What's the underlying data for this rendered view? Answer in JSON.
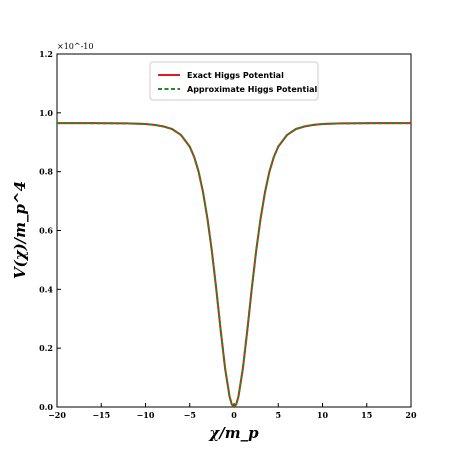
{
  "chart_data": {
    "type": "line",
    "xlabel": "χ/m_p",
    "ylabel": "V(χ)/m_p^4",
    "xlim": [
      -20,
      20
    ],
    "ylim": [
      0.0,
      1.2
    ],
    "y_scale_note": "×10^-10",
    "x_ticks": [
      -20,
      -15,
      -10,
      -5,
      0,
      5,
      10,
      15,
      20
    ],
    "x_tick_labels": [
      "−20",
      "−15",
      "−10",
      "−5",
      "0",
      "5",
      "10",
      "15",
      "20"
    ],
    "y_ticks": [
      0.0,
      0.2,
      0.4,
      0.6,
      0.8,
      1.0,
      1.2
    ],
    "y_tick_labels": [
      "0.0",
      "0.2",
      "0.4",
      "0.6",
      "0.8",
      "1.0",
      "1.2"
    ],
    "legend_position": "top-center",
    "grid": false,
    "x": [
      -20,
      -16,
      -12,
      -10,
      -9,
      -8,
      -7,
      -6,
      -5,
      -4.5,
      -4,
      -3.5,
      -3,
      -2.5,
      -2,
      -1.5,
      -1,
      -0.5,
      -0.25,
      0,
      0.25,
      0.5,
      1,
      1.5,
      2,
      2.5,
      3,
      3.5,
      4,
      4.5,
      5,
      6,
      7,
      8,
      9,
      10,
      12,
      16,
      20
    ],
    "series": [
      {
        "name": "Exact Higgs Potential",
        "color": "#e31a1c",
        "style": "solid",
        "values": [
          0.965,
          0.965,
          0.964,
          0.962,
          0.959,
          0.954,
          0.945,
          0.925,
          0.885,
          0.85,
          0.8,
          0.73,
          0.64,
          0.53,
          0.4,
          0.26,
          0.13,
          0.035,
          0.009,
          0.0,
          0.009,
          0.035,
          0.13,
          0.26,
          0.4,
          0.53,
          0.64,
          0.73,
          0.8,
          0.85,
          0.885,
          0.925,
          0.945,
          0.954,
          0.959,
          0.962,
          0.964,
          0.965,
          0.965
        ]
      },
      {
        "name": "Approximate Higgs Potential",
        "color": "#228b22",
        "style": "dashed",
        "values": [
          0.965,
          0.965,
          0.964,
          0.962,
          0.959,
          0.954,
          0.945,
          0.925,
          0.885,
          0.85,
          0.8,
          0.73,
          0.64,
          0.53,
          0.4,
          0.26,
          0.13,
          0.035,
          0.009,
          0.0,
          0.009,
          0.035,
          0.13,
          0.26,
          0.4,
          0.53,
          0.64,
          0.73,
          0.8,
          0.85,
          0.885,
          0.925,
          0.945,
          0.954,
          0.959,
          0.962,
          0.964,
          0.965,
          0.965
        ]
      }
    ]
  }
}
